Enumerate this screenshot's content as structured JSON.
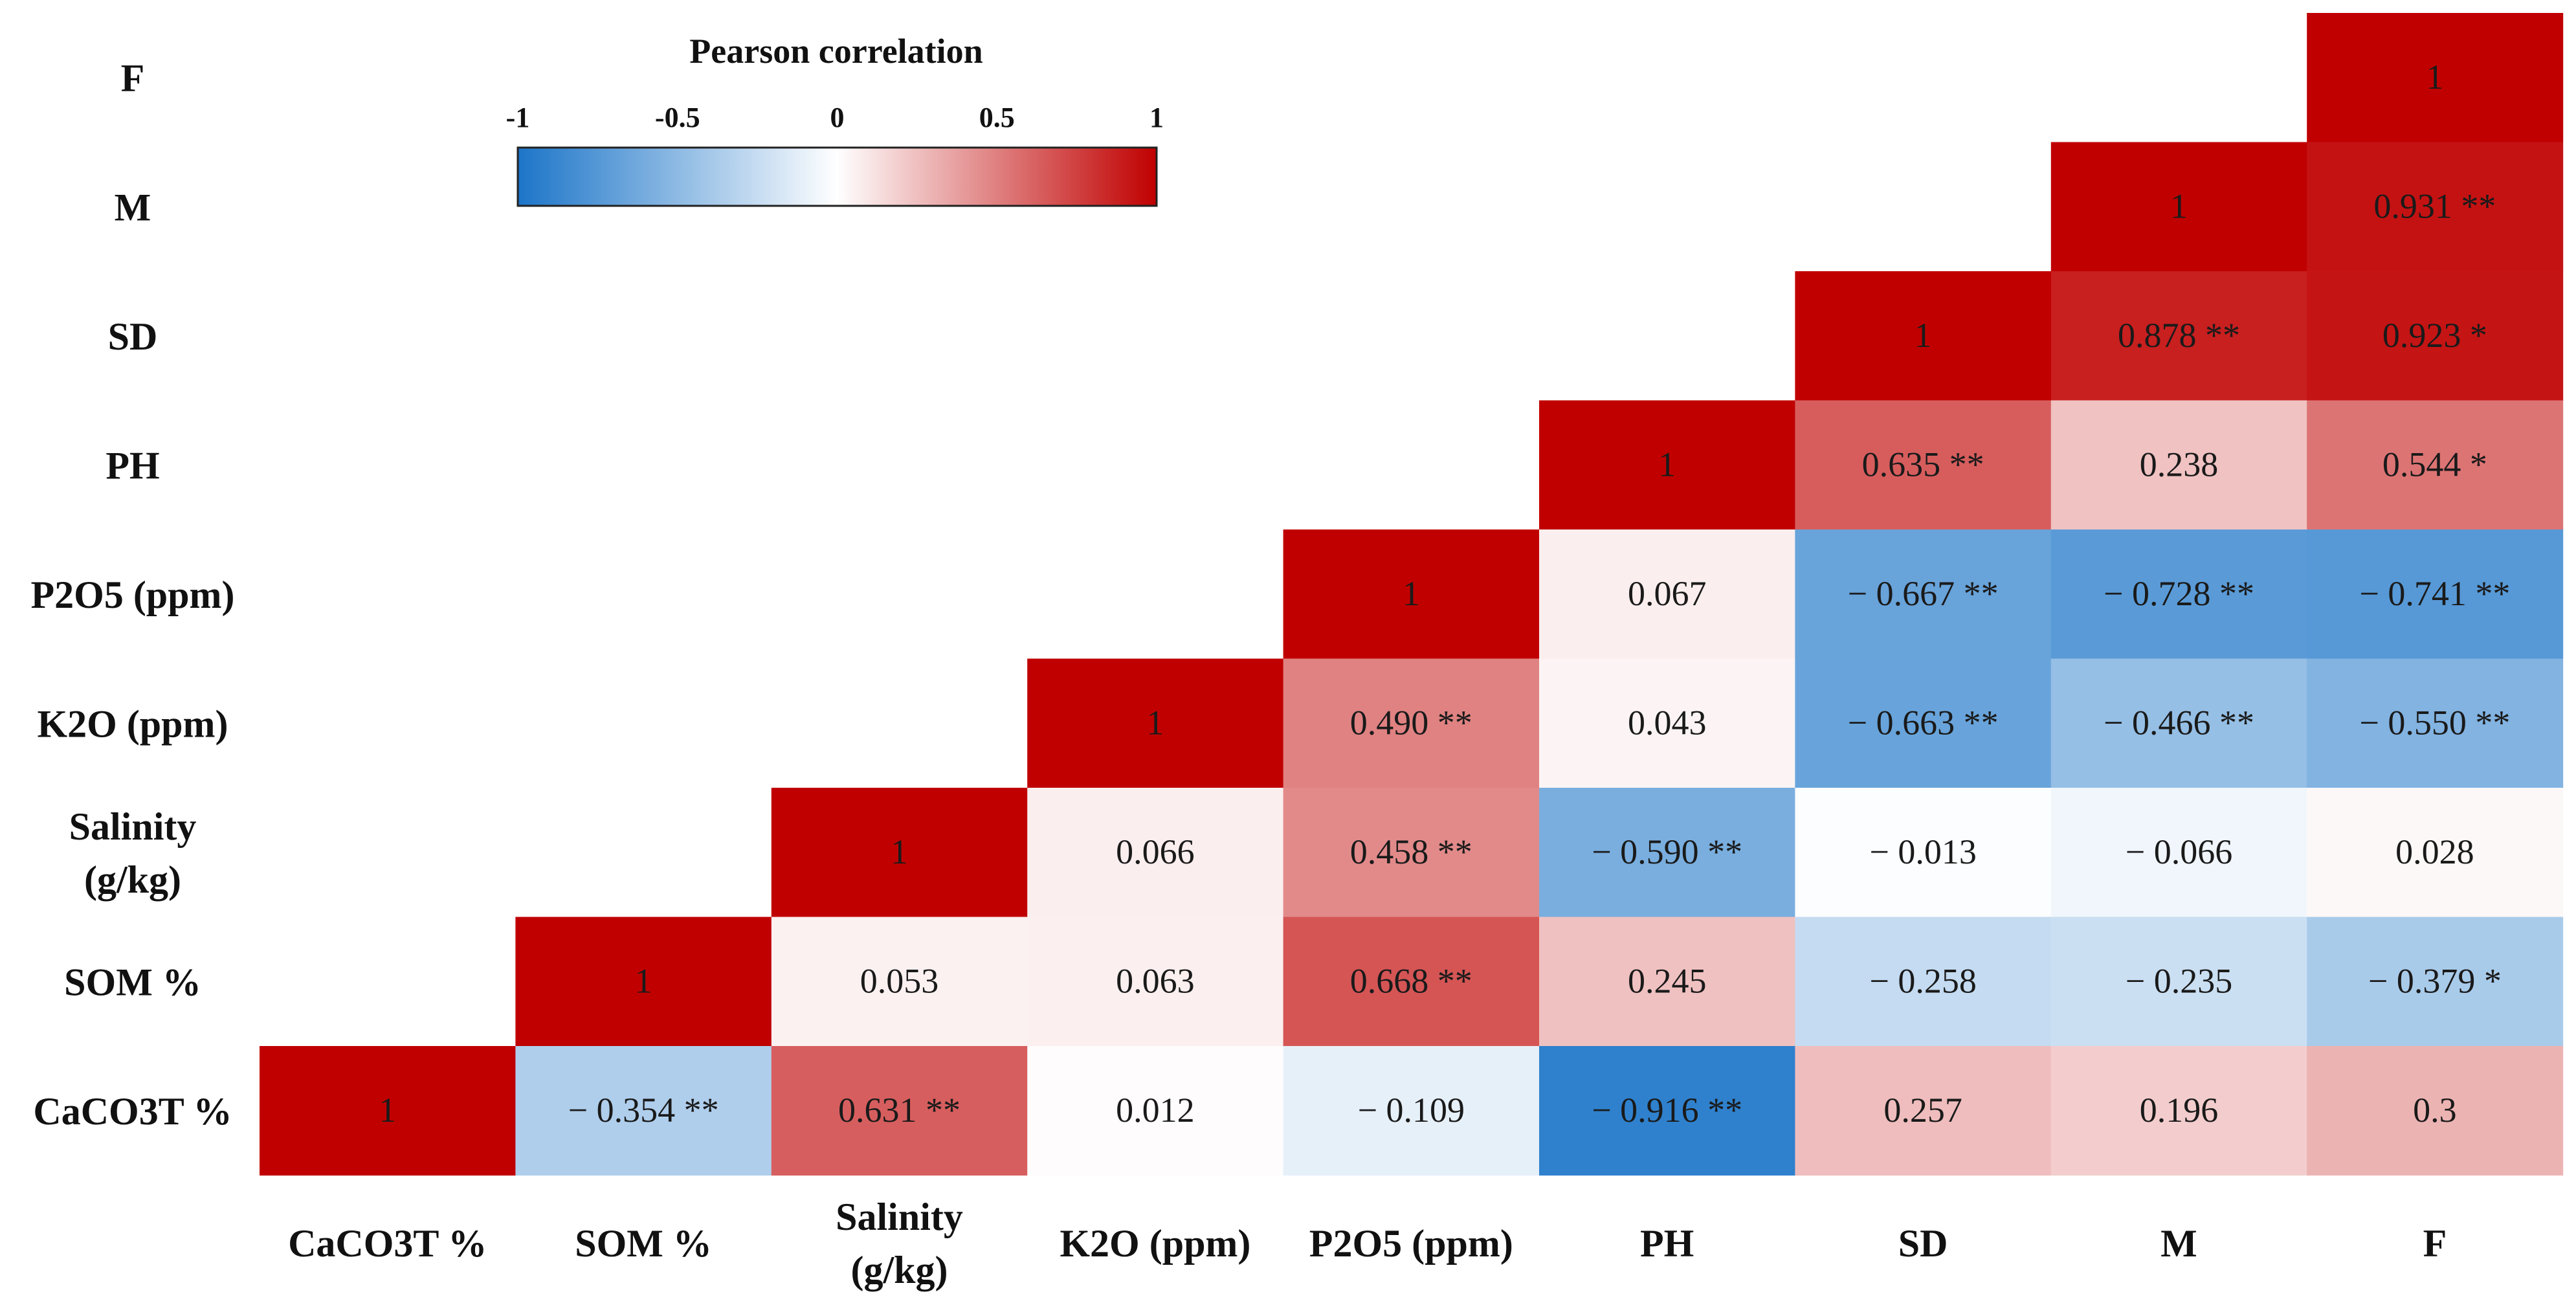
{
  "chart_data": {
    "type": "heatmap",
    "title": "Pearson correlation",
    "colorbar": {
      "title": "Pearson correlation",
      "ticks": [
        "-1",
        "-0.5",
        "0",
        "0.5",
        "1"
      ],
      "range": [
        -1,
        1
      ],
      "colors": {
        "negative": "#1c75c8",
        "zero": "#ffffff",
        "positive": "#c00000"
      }
    },
    "x_labels": [
      [
        "CaCO3T %"
      ],
      [
        "SOM %"
      ],
      [
        "Salinity",
        "(g/kg)"
      ],
      [
        "K2O (ppm)"
      ],
      [
        "P2O5 (ppm)"
      ],
      [
        "PH"
      ],
      [
        "SD"
      ],
      [
        "M"
      ],
      [
        "F"
      ]
    ],
    "y_labels": [
      [
        "F"
      ],
      [
        "M"
      ],
      [
        "SD"
      ],
      [
        "PH"
      ],
      [
        "P2O5 (ppm)"
      ],
      [
        "K2O (ppm)"
      ],
      [
        "Salinity",
        "(g/kg)"
      ],
      [
        "SOM %"
      ],
      [
        "CaCO3T %"
      ]
    ],
    "cells": [
      {
        "row": 0,
        "col": 8,
        "value": 1,
        "label": "1"
      },
      {
        "row": 1,
        "col": 7,
        "value": 1,
        "label": "1"
      },
      {
        "row": 1,
        "col": 8,
        "value": 0.931,
        "label": "0.931 **"
      },
      {
        "row": 2,
        "col": 6,
        "value": 1,
        "label": "1"
      },
      {
        "row": 2,
        "col": 7,
        "value": 0.878,
        "label": "0.878 **"
      },
      {
        "row": 2,
        "col": 8,
        "value": 0.923,
        "label": "0.923 *"
      },
      {
        "row": 3,
        "col": 5,
        "value": 1,
        "label": "1"
      },
      {
        "row": 3,
        "col": 6,
        "value": 0.635,
        "label": "0.635 **"
      },
      {
        "row": 3,
        "col": 7,
        "value": 0.238,
        "label": "0.238"
      },
      {
        "row": 3,
        "col": 8,
        "value": 0.544,
        "label": "0.544 *"
      },
      {
        "row": 4,
        "col": 4,
        "value": 1,
        "label": "1"
      },
      {
        "row": 4,
        "col": 5,
        "value": 0.067,
        "label": "0.067"
      },
      {
        "row": 4,
        "col": 6,
        "value": -0.667,
        "label": "− 0.667 **"
      },
      {
        "row": 4,
        "col": 7,
        "value": -0.728,
        "label": "− 0.728 **"
      },
      {
        "row": 4,
        "col": 8,
        "value": -0.741,
        "label": "− 0.741 **"
      },
      {
        "row": 5,
        "col": 3,
        "value": 1,
        "label": "1"
      },
      {
        "row": 5,
        "col": 4,
        "value": 0.49,
        "label": "0.490 **"
      },
      {
        "row": 5,
        "col": 5,
        "value": 0.043,
        "label": "0.043"
      },
      {
        "row": 5,
        "col": 6,
        "value": -0.663,
        "label": "− 0.663 **"
      },
      {
        "row": 5,
        "col": 7,
        "value": -0.466,
        "label": "− 0.466 **"
      },
      {
        "row": 5,
        "col": 8,
        "value": -0.55,
        "label": "− 0.550 **"
      },
      {
        "row": 6,
        "col": 2,
        "value": 1,
        "label": "1"
      },
      {
        "row": 6,
        "col": 3,
        "value": 0.066,
        "label": "0.066"
      },
      {
        "row": 6,
        "col": 4,
        "value": 0.458,
        "label": "0.458 **"
      },
      {
        "row": 6,
        "col": 5,
        "value": -0.59,
        "label": "− 0.590 **"
      },
      {
        "row": 6,
        "col": 6,
        "value": -0.013,
        "label": "− 0.013"
      },
      {
        "row": 6,
        "col": 7,
        "value": -0.066,
        "label": "− 0.066"
      },
      {
        "row": 6,
        "col": 8,
        "value": 0.028,
        "label": "0.028"
      },
      {
        "row": 7,
        "col": 1,
        "value": 1,
        "label": "1"
      },
      {
        "row": 7,
        "col": 2,
        "value": 0.053,
        "label": "0.053"
      },
      {
        "row": 7,
        "col": 3,
        "value": 0.063,
        "label": "0.063"
      },
      {
        "row": 7,
        "col": 4,
        "value": 0.668,
        "label": "0.668 **"
      },
      {
        "row": 7,
        "col": 5,
        "value": 0.245,
        "label": "0.245"
      },
      {
        "row": 7,
        "col": 6,
        "value": -0.258,
        "label": "− 0.258"
      },
      {
        "row": 7,
        "col": 7,
        "value": -0.235,
        "label": "− 0.235"
      },
      {
        "row": 7,
        "col": 8,
        "value": -0.379,
        "label": "− 0.379 *"
      },
      {
        "row": 8,
        "col": 0,
        "value": 1,
        "label": "1"
      },
      {
        "row": 8,
        "col": 1,
        "value": -0.354,
        "label": "− 0.354 **"
      },
      {
        "row": 8,
        "col": 2,
        "value": 0.631,
        "label": "0.631 **"
      },
      {
        "row": 8,
        "col": 3,
        "value": 0.012,
        "label": "0.012"
      },
      {
        "row": 8,
        "col": 4,
        "value": -0.109,
        "label": "− 0.109"
      },
      {
        "row": 8,
        "col": 5,
        "value": -0.916,
        "label": "− 0.916 **"
      },
      {
        "row": 8,
        "col": 6,
        "value": 0.257,
        "label": "0.257"
      },
      {
        "row": 8,
        "col": 7,
        "value": 0.196,
        "label": "0.196"
      },
      {
        "row": 8,
        "col": 8,
        "value": 0.3,
        "label": "0.3"
      }
    ]
  }
}
